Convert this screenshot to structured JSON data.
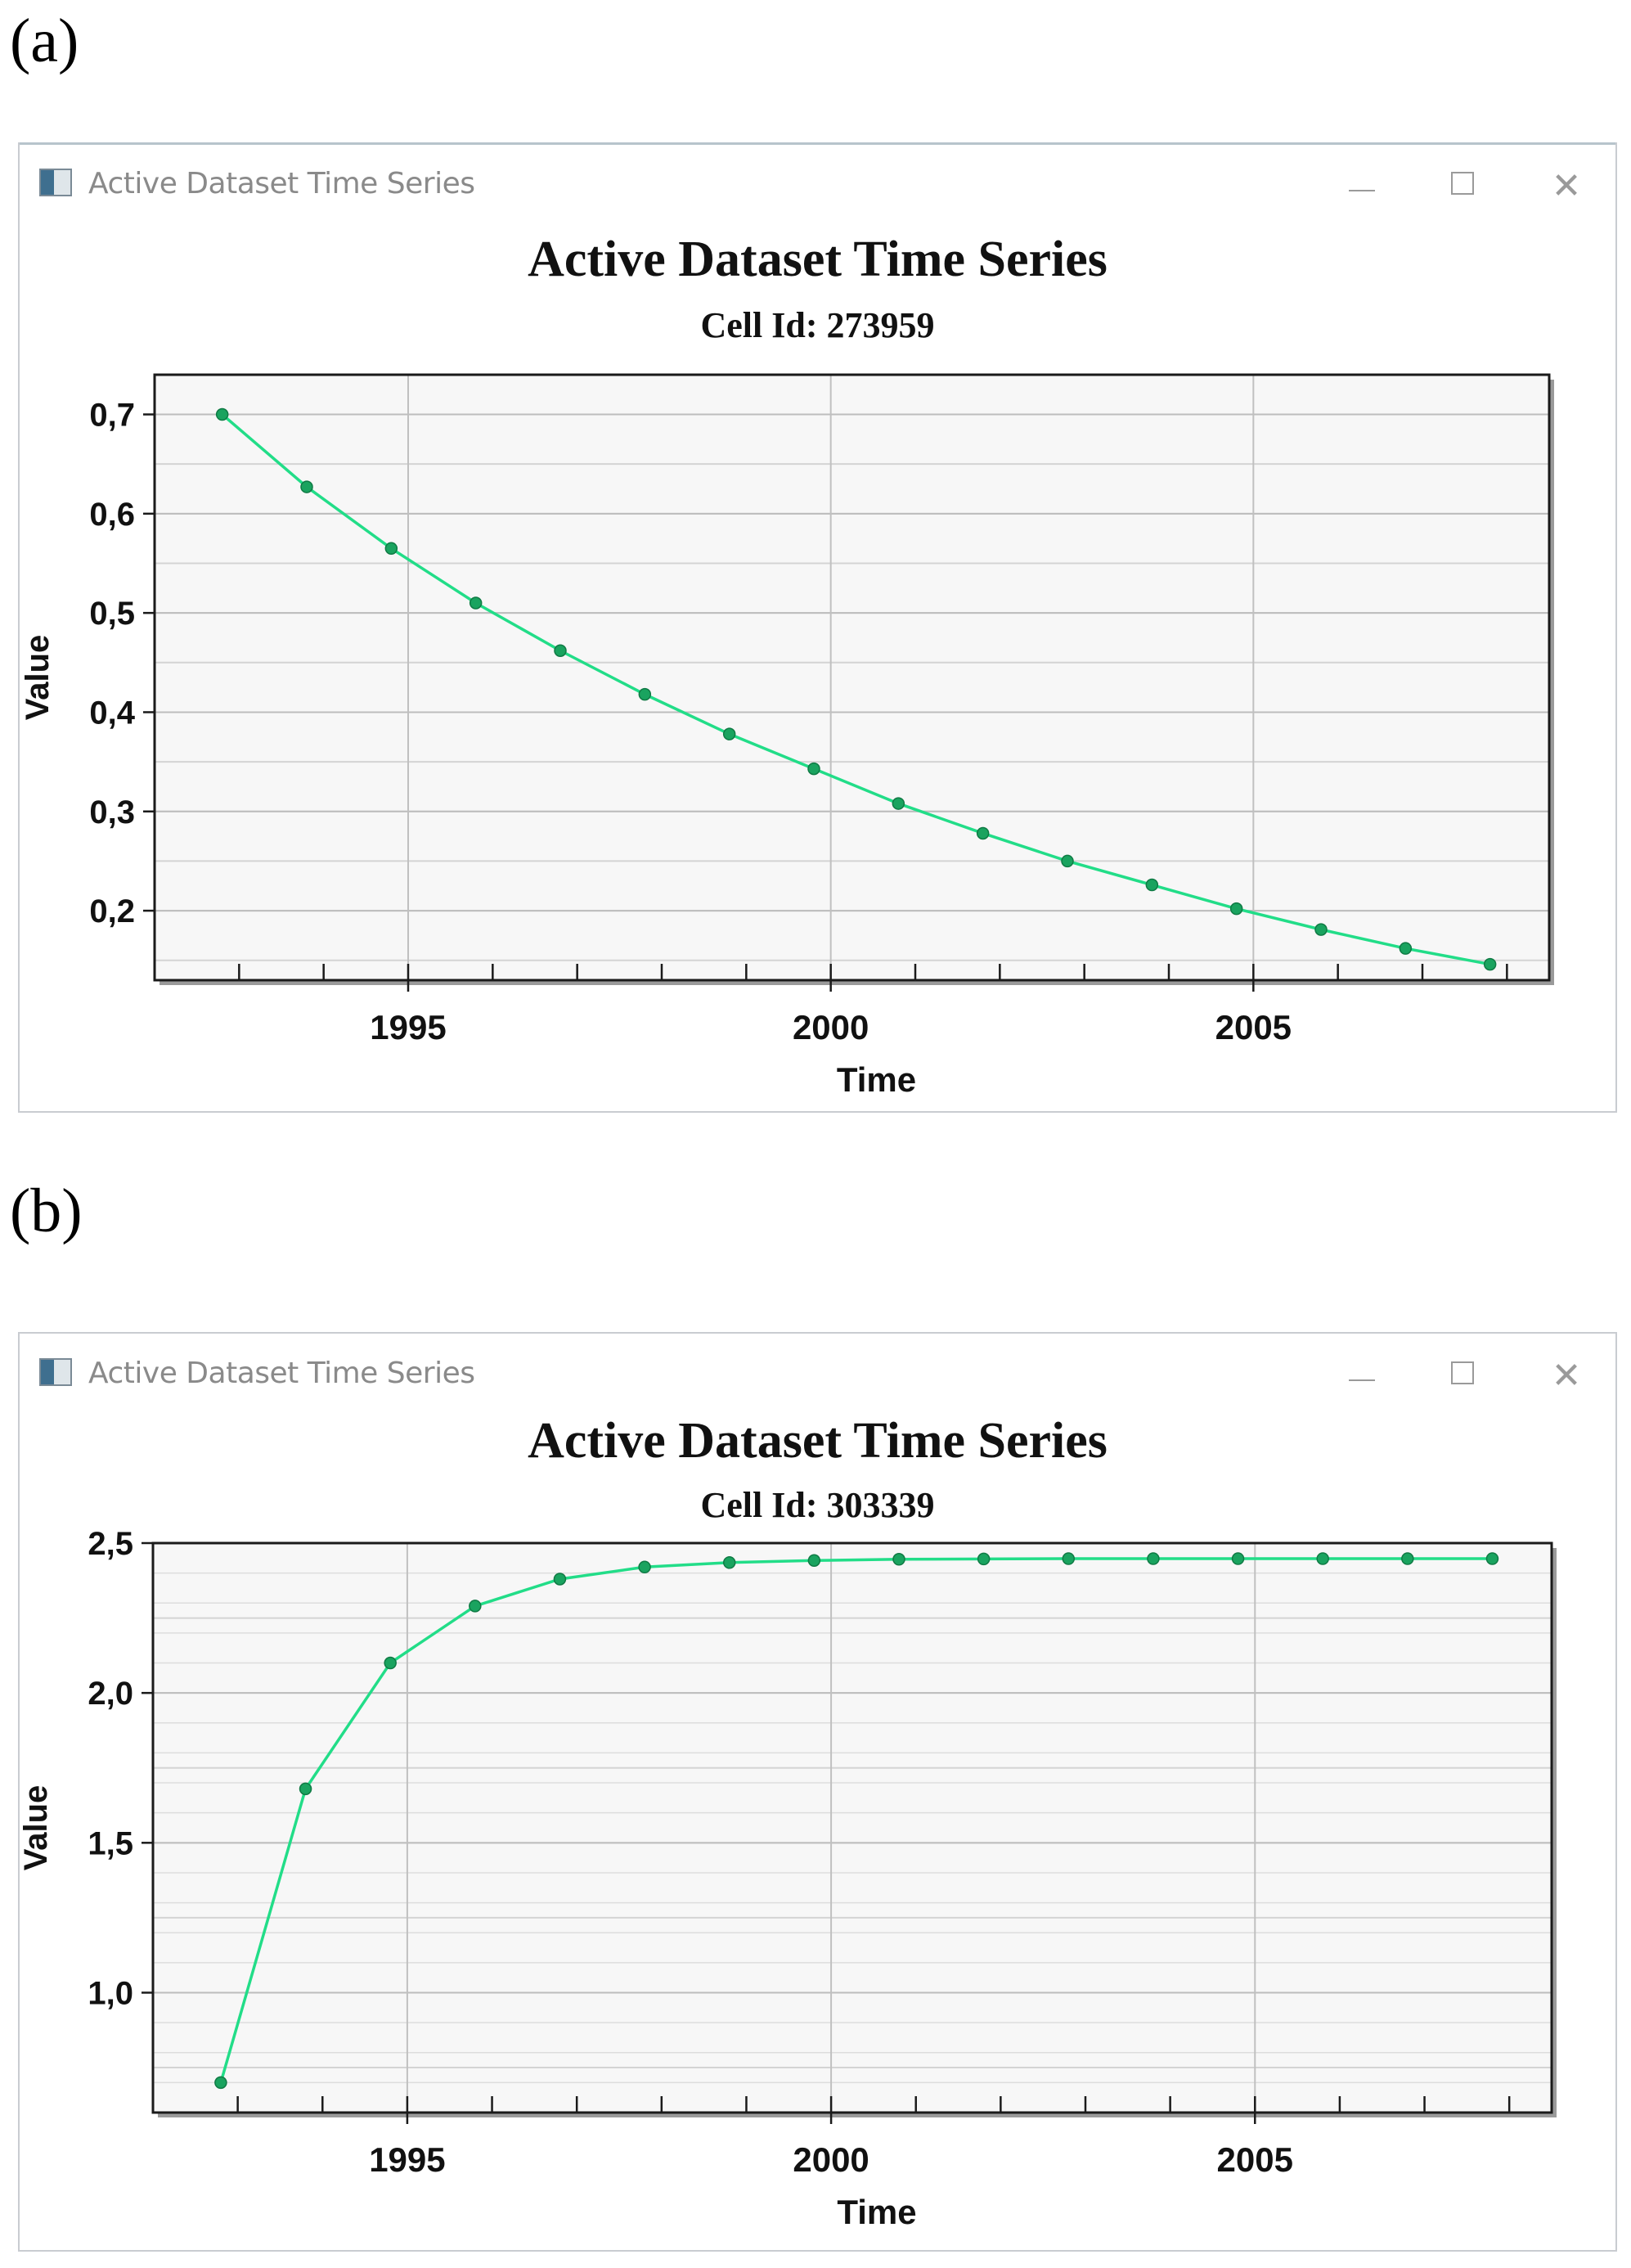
{
  "panels": [
    {
      "label": "(a)",
      "window_title": "Active Dataset Time Series",
      "icons": {
        "app": "chart-app-icon",
        "minimize": "minimize-icon",
        "maximize": "maximize-icon",
        "close": "close-icon"
      },
      "close_glyph": "✕"
    },
    {
      "label": "(b)",
      "window_title": "Active Dataset Time Series",
      "icons": {
        "app": "chart-app-icon",
        "minimize": "minimize-icon",
        "maximize": "maximize-icon",
        "close": "close-icon"
      },
      "close_glyph": "✕"
    }
  ],
  "chart_data": [
    {
      "type": "line",
      "title": "Active Dataset Time Series",
      "subtitle": "Cell Id: 273959",
      "xlabel": "Time",
      "ylabel": "Value",
      "xlim": [
        1992,
        2008.5
      ],
      "ylim": [
        0.13,
        0.74
      ],
      "x_ticks": [
        1995,
        2000,
        2005
      ],
      "x_tick_labels": [
        "1995",
        "2000",
        "2005"
      ],
      "y_ticks": [
        0.2,
        0.3,
        0.4,
        0.5,
        0.6,
        0.7
      ],
      "y_tick_labels": [
        "0,2",
        "0,3",
        "0,4",
        "0,5",
        "0,6",
        "0,7"
      ],
      "grid": true,
      "line_color": "#22dd88",
      "marker_color": "#1aa35f",
      "series": [
        {
          "x": [
            1992.8,
            1993.8,
            1994.8,
            1995.8,
            1996.8,
            1997.8,
            1998.8,
            1999.8,
            2000.8,
            2001.8,
            2002.8,
            2003.8,
            2004.8,
            2005.8,
            2006.8,
            2007.8
          ],
          "values": [
            0.7,
            0.627,
            0.565,
            0.51,
            0.462,
            0.418,
            0.378,
            0.343,
            0.308,
            0.278,
            0.25,
            0.226,
            0.202,
            0.181,
            0.162,
            0.146
          ]
        }
      ]
    },
    {
      "type": "line",
      "title": "Active Dataset Time Series",
      "subtitle": "Cell Id: 303339",
      "xlabel": "Time",
      "ylabel": "Value",
      "xlim": [
        1992,
        2008.5
      ],
      "ylim": [
        0.6,
        2.5
      ],
      "x_ticks": [
        1995,
        2000,
        2005
      ],
      "x_tick_labels": [
        "1995",
        "2000",
        "2005"
      ],
      "y_ticks": [
        1.0,
        1.5,
        2.0,
        2.5
      ],
      "y_tick_labels": [
        "1,0",
        "1,5",
        "2,0",
        "2,5"
      ],
      "grid": true,
      "line_color": "#22dd88",
      "marker_color": "#1aa35f",
      "series": [
        {
          "x": [
            1992.8,
            1993.8,
            1994.8,
            1995.8,
            1996.8,
            1997.8,
            1998.8,
            1999.8,
            2000.8,
            2001.8,
            2002.8,
            2003.8,
            2004.8,
            2005.8,
            2006.8,
            2007.8
          ],
          "values": [
            0.7,
            1.68,
            2.1,
            2.29,
            2.38,
            2.42,
            2.435,
            2.442,
            2.446,
            2.447,
            2.448,
            2.448,
            2.448,
            2.448,
            2.448,
            2.448
          ]
        }
      ]
    }
  ]
}
